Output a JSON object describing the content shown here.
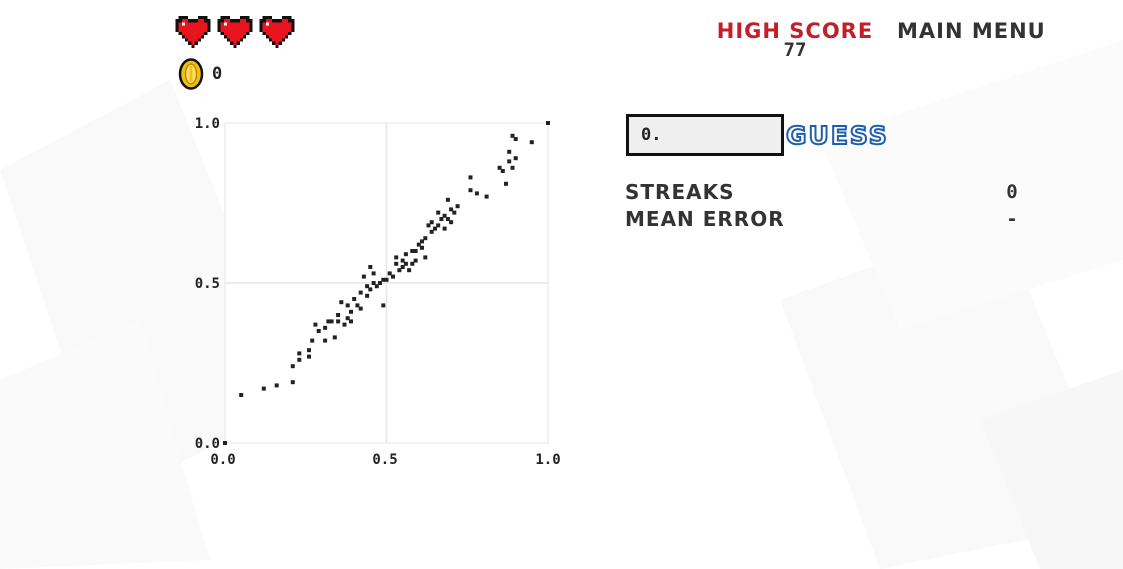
{
  "lives": {
    "count": 3,
    "icon": "heart-icon",
    "color": "#e8151f"
  },
  "coins": {
    "icon": "coin-icon",
    "count": "0"
  },
  "header": {
    "high_score_label": "HIGH SCORE",
    "high_score_value": "77",
    "main_menu_label": "MAIN MENU"
  },
  "guess": {
    "input_value": "0.",
    "button_label": "GUESS"
  },
  "stats": {
    "streaks_label": "STREAKS",
    "streaks_value": "0",
    "mean_error_label": "MEAN ERROR",
    "mean_error_value": "-"
  },
  "colors": {
    "accent_red": "#c41e2a",
    "guess_blue": "#1c5fae",
    "point": "#222222",
    "grid": "#e6e6e6"
  },
  "chart_data": {
    "type": "scatter",
    "xlim": [
      0,
      1
    ],
    "ylim": [
      0,
      1
    ],
    "x_ticks": [
      "0.0",
      "0.5",
      "1.0"
    ],
    "y_ticks": [
      "0.0",
      "0.5",
      "1.0"
    ],
    "grid": true,
    "points": [
      [
        0.0,
        0.0
      ],
      [
        0.05,
        0.15
      ],
      [
        0.12,
        0.17
      ],
      [
        0.16,
        0.18
      ],
      [
        0.21,
        0.19
      ],
      [
        0.21,
        0.24
      ],
      [
        0.23,
        0.26
      ],
      [
        0.23,
        0.28
      ],
      [
        0.26,
        0.27
      ],
      [
        0.26,
        0.29
      ],
      [
        0.27,
        0.32
      ],
      [
        0.28,
        0.37
      ],
      [
        0.29,
        0.35
      ],
      [
        0.31,
        0.32
      ],
      [
        0.31,
        0.36
      ],
      [
        0.32,
        0.38
      ],
      [
        0.33,
        0.38
      ],
      [
        0.34,
        0.33
      ],
      [
        0.35,
        0.38
      ],
      [
        0.35,
        0.4
      ],
      [
        0.36,
        0.44
      ],
      [
        0.37,
        0.37
      ],
      [
        0.38,
        0.43
      ],
      [
        0.38,
        0.39
      ],
      [
        0.39,
        0.41
      ],
      [
        0.39,
        0.38
      ],
      [
        0.4,
        0.45
      ],
      [
        0.41,
        0.43
      ],
      [
        0.42,
        0.42
      ],
      [
        0.42,
        0.47
      ],
      [
        0.43,
        0.52
      ],
      [
        0.44,
        0.49
      ],
      [
        0.44,
        0.46
      ],
      [
        0.45,
        0.48
      ],
      [
        0.45,
        0.55
      ],
      [
        0.46,
        0.5
      ],
      [
        0.46,
        0.53
      ],
      [
        0.47,
        0.49
      ],
      [
        0.48,
        0.5
      ],
      [
        0.49,
        0.51
      ],
      [
        0.49,
        0.43
      ],
      [
        0.5,
        0.51
      ],
      [
        0.51,
        0.53
      ],
      [
        0.52,
        0.52
      ],
      [
        0.53,
        0.56
      ],
      [
        0.53,
        0.58
      ],
      [
        0.54,
        0.54
      ],
      [
        0.55,
        0.57
      ],
      [
        0.55,
        0.55
      ],
      [
        0.56,
        0.56
      ],
      [
        0.56,
        0.59
      ],
      [
        0.57,
        0.54
      ],
      [
        0.58,
        0.56
      ],
      [
        0.58,
        0.6
      ],
      [
        0.59,
        0.6
      ],
      [
        0.59,
        0.57
      ],
      [
        0.6,
        0.62
      ],
      [
        0.61,
        0.63
      ],
      [
        0.61,
        0.61
      ],
      [
        0.62,
        0.64
      ],
      [
        0.62,
        0.58
      ],
      [
        0.63,
        0.68
      ],
      [
        0.64,
        0.66
      ],
      [
        0.64,
        0.69
      ],
      [
        0.65,
        0.67
      ],
      [
        0.66,
        0.68
      ],
      [
        0.66,
        0.72
      ],
      [
        0.67,
        0.7
      ],
      [
        0.68,
        0.67
      ],
      [
        0.68,
        0.71
      ],
      [
        0.69,
        0.7
      ],
      [
        0.69,
        0.76
      ],
      [
        0.7,
        0.73
      ],
      [
        0.7,
        0.69
      ],
      [
        0.71,
        0.72
      ],
      [
        0.72,
        0.74
      ],
      [
        0.76,
        0.83
      ],
      [
        0.76,
        0.79
      ],
      [
        0.78,
        0.78
      ],
      [
        0.81,
        0.77
      ],
      [
        0.85,
        0.86
      ],
      [
        0.86,
        0.85
      ],
      [
        0.87,
        0.81
      ],
      [
        0.88,
        0.88
      ],
      [
        0.88,
        0.91
      ],
      [
        0.89,
        0.96
      ],
      [
        0.89,
        0.86
      ],
      [
        0.9,
        0.89
      ],
      [
        0.9,
        0.95
      ],
      [
        0.95,
        0.94
      ],
      [
        1.0,
        1.0
      ]
    ]
  }
}
